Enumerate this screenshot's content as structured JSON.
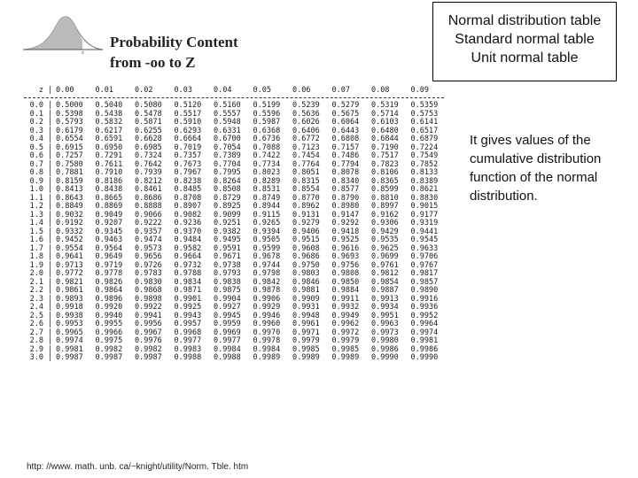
{
  "header": {
    "title_line1": "Probability Content",
    "title_line2": "from  -oo to Z",
    "curve_label": "z"
  },
  "callout": {
    "line1": "Normal distribution table",
    "line2": "Standard normal table",
    "line3": "Unit normal table"
  },
  "description": "It gives values of the cumulative distribution function of the normal distribution.",
  "table": {
    "z_header": "z",
    "columns": [
      "0.00",
      "0.01",
      "0.02",
      "0.03",
      "0.04",
      "0.05",
      "0.06",
      "0.07",
      "0.08",
      "0.09"
    ],
    "rows": [
      {
        "z": "0.0",
        "values": [
          "0.5000",
          "0.5040",
          "0.5080",
          "0.5120",
          "0.5160",
          "0.5199",
          "0.5239",
          "0.5279",
          "0.5319",
          "0.5359"
        ]
      },
      {
        "z": "0.1",
        "values": [
          "0.5398",
          "0.5438",
          "0.5478",
          "0.5517",
          "0.5557",
          "0.5596",
          "0.5636",
          "0.5675",
          "0.5714",
          "0.5753"
        ]
      },
      {
        "z": "0.2",
        "values": [
          "0.5793",
          "0.5832",
          "0.5871",
          "0.5910",
          "0.5948",
          "0.5987",
          "0.6026",
          "0.6064",
          "0.6103",
          "0.6141"
        ]
      },
      {
        "z": "0.3",
        "values": [
          "0.6179",
          "0.6217",
          "0.6255",
          "0.6293",
          "0.6331",
          "0.6368",
          "0.6406",
          "0.6443",
          "0.6480",
          "0.6517"
        ]
      },
      {
        "z": "0.4",
        "values": [
          "0.6554",
          "0.6591",
          "0.6628",
          "0.6664",
          "0.6700",
          "0.6736",
          "0.6772",
          "0.6808",
          "0.6844",
          "0.6879"
        ]
      },
      {
        "z": "0.5",
        "values": [
          "0.6915",
          "0.6950",
          "0.6985",
          "0.7019",
          "0.7054",
          "0.7088",
          "0.7123",
          "0.7157",
          "0.7190",
          "0.7224"
        ]
      },
      {
        "z": "0.6",
        "values": [
          "0.7257",
          "0.7291",
          "0.7324",
          "0.7357",
          "0.7389",
          "0.7422",
          "0.7454",
          "0.7486",
          "0.7517",
          "0.7549"
        ]
      },
      {
        "z": "0.7",
        "values": [
          "0.7580",
          "0.7611",
          "0.7642",
          "0.7673",
          "0.7704",
          "0.7734",
          "0.7764",
          "0.7794",
          "0.7823",
          "0.7852"
        ]
      },
      {
        "z": "0.8",
        "values": [
          "0.7881",
          "0.7910",
          "0.7939",
          "0.7967",
          "0.7995",
          "0.8023",
          "0.8051",
          "0.8078",
          "0.8106",
          "0.8133"
        ]
      },
      {
        "z": "0.9",
        "values": [
          "0.8159",
          "0.8186",
          "0.8212",
          "0.8238",
          "0.8264",
          "0.8289",
          "0.8315",
          "0.8340",
          "0.8365",
          "0.8389"
        ]
      },
      {
        "z": "1.0",
        "values": [
          "0.8413",
          "0.8438",
          "0.8461",
          "0.8485",
          "0.8508",
          "0.8531",
          "0.8554",
          "0.8577",
          "0.8599",
          "0.8621"
        ]
      },
      {
        "z": "1.1",
        "values": [
          "0.8643",
          "0.8665",
          "0.8686",
          "0.8708",
          "0.8729",
          "0.8749",
          "0.8770",
          "0.8790",
          "0.8810",
          "0.8830"
        ]
      },
      {
        "z": "1.2",
        "values": [
          "0.8849",
          "0.8869",
          "0.8888",
          "0.8907",
          "0.8925",
          "0.8944",
          "0.8962",
          "0.8980",
          "0.8997",
          "0.9015"
        ]
      },
      {
        "z": "1.3",
        "values": [
          "0.9032",
          "0.9049",
          "0.9066",
          "0.9082",
          "0.9099",
          "0.9115",
          "0.9131",
          "0.9147",
          "0.9162",
          "0.9177"
        ]
      },
      {
        "z": "1.4",
        "values": [
          "0.9192",
          "0.9207",
          "0.9222",
          "0.9236",
          "0.9251",
          "0.9265",
          "0.9279",
          "0.9292",
          "0.9306",
          "0.9319"
        ]
      },
      {
        "z": "1.5",
        "values": [
          "0.9332",
          "0.9345",
          "0.9357",
          "0.9370",
          "0.9382",
          "0.9394",
          "0.9406",
          "0.9418",
          "0.9429",
          "0.9441"
        ]
      },
      {
        "z": "1.6",
        "values": [
          "0.9452",
          "0.9463",
          "0.9474",
          "0.9484",
          "0.9495",
          "0.9505",
          "0.9515",
          "0.9525",
          "0.9535",
          "0.9545"
        ]
      },
      {
        "z": "1.7",
        "values": [
          "0.9554",
          "0.9564",
          "0.9573",
          "0.9582",
          "0.9591",
          "0.9599",
          "0.9608",
          "0.9616",
          "0.9625",
          "0.9633"
        ]
      },
      {
        "z": "1.8",
        "values": [
          "0.9641",
          "0.9649",
          "0.9656",
          "0.9664",
          "0.9671",
          "0.9678",
          "0.9686",
          "0.9693",
          "0.9699",
          "0.9706"
        ]
      },
      {
        "z": "1.9",
        "values": [
          "0.9713",
          "0.9719",
          "0.9726",
          "0.9732",
          "0.9738",
          "0.9744",
          "0.9750",
          "0.9756",
          "0.9761",
          "0.9767"
        ]
      },
      {
        "z": "2.0",
        "values": [
          "0.9772",
          "0.9778",
          "0.9783",
          "0.9788",
          "0.9793",
          "0.9798",
          "0.9803",
          "0.9808",
          "0.9812",
          "0.9817"
        ]
      },
      {
        "z": "2.1",
        "values": [
          "0.9821",
          "0.9826",
          "0.9830",
          "0.9834",
          "0.9838",
          "0.9842",
          "0.9846",
          "0.9850",
          "0.9854",
          "0.9857"
        ]
      },
      {
        "z": "2.2",
        "values": [
          "0.9861",
          "0.9864",
          "0.9868",
          "0.9871",
          "0.9875",
          "0.9878",
          "0.9881",
          "0.9884",
          "0.9887",
          "0.9890"
        ]
      },
      {
        "z": "2.3",
        "values": [
          "0.9893",
          "0.9896",
          "0.9898",
          "0.9901",
          "0.9904",
          "0.9906",
          "0.9909",
          "0.9911",
          "0.9913",
          "0.9916"
        ]
      },
      {
        "z": "2.4",
        "values": [
          "0.9918",
          "0.9920",
          "0.9922",
          "0.9925",
          "0.9927",
          "0.9929",
          "0.9931",
          "0.9932",
          "0.9934",
          "0.9936"
        ]
      },
      {
        "z": "2.5",
        "values": [
          "0.9938",
          "0.9940",
          "0.9941",
          "0.9943",
          "0.9945",
          "0.9946",
          "0.9948",
          "0.9949",
          "0.9951",
          "0.9952"
        ]
      },
      {
        "z": "2.6",
        "values": [
          "0.9953",
          "0.9955",
          "0.9956",
          "0.9957",
          "0.9959",
          "0.9960",
          "0.9961",
          "0.9962",
          "0.9963",
          "0.9964"
        ]
      },
      {
        "z": "2.7",
        "values": [
          "0.9965",
          "0.9966",
          "0.9967",
          "0.9968",
          "0.9969",
          "0.9970",
          "0.9971",
          "0.9972",
          "0.9973",
          "0.9974"
        ]
      },
      {
        "z": "2.8",
        "values": [
          "0.9974",
          "0.9975",
          "0.9976",
          "0.9977",
          "0.9977",
          "0.9978",
          "0.9979",
          "0.9979",
          "0.9980",
          "0.9981"
        ]
      },
      {
        "z": "2.9",
        "values": [
          "0.9981",
          "0.9982",
          "0.9982",
          "0.9983",
          "0.9984",
          "0.9984",
          "0.9985",
          "0.9985",
          "0.9986",
          "0.9986"
        ]
      },
      {
        "z": "3.0",
        "values": [
          "0.9987",
          "0.9987",
          "0.9987",
          "0.9988",
          "0.9988",
          "0.9989",
          "0.9989",
          "0.9989",
          "0.9990",
          "0.9990"
        ]
      }
    ]
  },
  "source_url": "http: //www. math. unb. ca/~knight/utility/Norm. Tble. htm"
}
